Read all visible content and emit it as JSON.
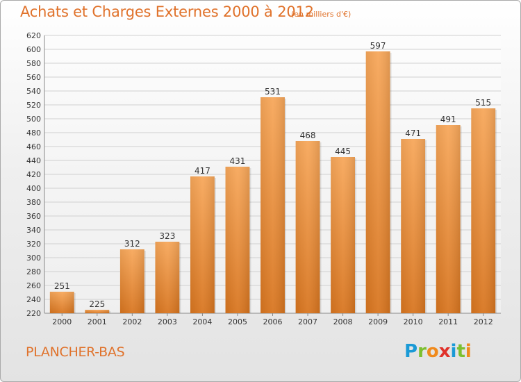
{
  "title": "Achats et Charges Externes 2000 à 2012",
  "subtitle": "(en milliers d'€)",
  "commune": "PLANCHER-BAS",
  "logo": {
    "letters": [
      "P",
      "r",
      "o",
      "x",
      "i",
      "t",
      "i"
    ]
  },
  "colors": {
    "accent": "#e0722b",
    "bar_top": "#f7a75a",
    "bar_bottom": "#d8751f",
    "grid": "#d0d0d0"
  },
  "chart_data": {
    "type": "bar",
    "title": "Achats et Charges Externes 2000 à 2012",
    "subtitle": "(en milliers d'€)",
    "xlabel": "",
    "ylabel": "",
    "categories": [
      "2000",
      "2001",
      "2002",
      "2003",
      "2004",
      "2005",
      "2006",
      "2007",
      "2008",
      "2009",
      "2010",
      "2011",
      "2012"
    ],
    "values": [
      251,
      225,
      312,
      323,
      417,
      431,
      531,
      468,
      445,
      597,
      471,
      491,
      515
    ],
    "ylim": [
      220,
      620
    ],
    "ytick_step": 20,
    "grid": true,
    "legend": "none"
  }
}
